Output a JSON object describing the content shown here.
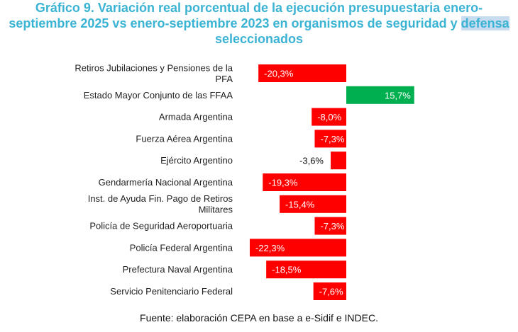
{
  "title": {
    "line1": "Gráfico 9. Variación real porcentual de la ejecución presupuestaria enero-",
    "line2_main": "septiembre 2025 vs enero-septiembre 2023 en organismos de seguridad y ",
    "line2_highlight": "defensa",
    "line3": "seleccionados"
  },
  "source": "Fuente: elaboración CEPA en base a e-Sidif e INDEC.",
  "colors": {
    "negative": "#ff0000",
    "positive": "#00b050",
    "title": "#3bb3d4"
  },
  "chart_data": {
    "type": "bar",
    "orientation": "horizontal",
    "categories": [
      [
        "Retiros Jubilaciones y Pensiones de la",
        "PFA"
      ],
      [
        "Estado Mayor Conjunto de las FFAA"
      ],
      [
        "Armada Argentina"
      ],
      [
        "Fuerza Aérea Argentina"
      ],
      [
        "Ejército Argentino"
      ],
      [
        "Gendarmería Nacional Argentina"
      ],
      [
        "Inst. de Ayuda Fin. Pago de Retiros",
        "Militares"
      ],
      [
        "Policía de Seguridad Aeroportuaria"
      ],
      [
        "Policía Federal Argentina"
      ],
      [
        "Prefectura Naval Argentina"
      ],
      [
        "Servicio Penitenciario Federal"
      ]
    ],
    "values": [
      -20.3,
      15.7,
      -8.0,
      -7.3,
      -3.6,
      -19.3,
      -15.4,
      -7.3,
      -22.3,
      -18.5,
      -7.6
    ],
    "labels": [
      "-20,3%",
      "15,7%",
      "-8,0%",
      "-7,3%",
      "-3,6%",
      "-19,3%",
      "-15,4%",
      "-7,3%",
      "-22,3%",
      "-18,5%",
      "-7,6%"
    ],
    "grid": false,
    "legend": "none"
  }
}
